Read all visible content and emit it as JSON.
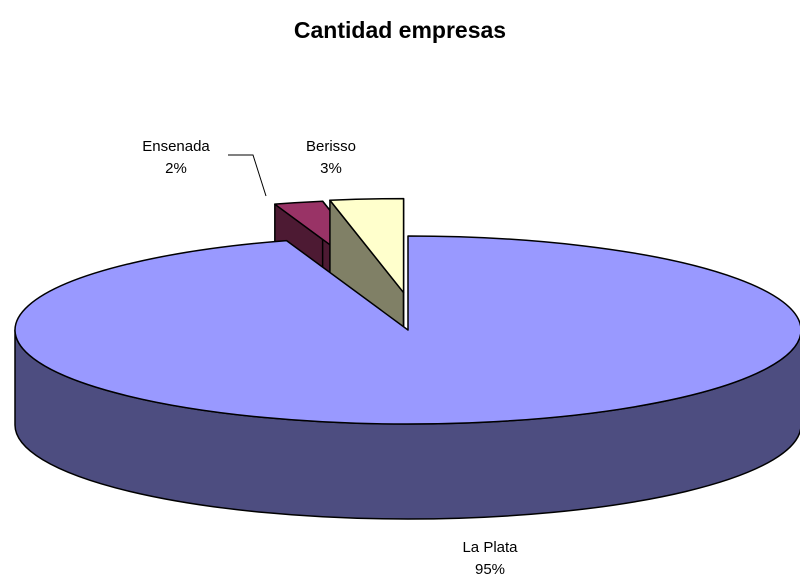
{
  "chart_data": {
    "type": "pie",
    "title": "Cantidad empresas",
    "categories": [
      "La Plata",
      "Ensenada",
      "Berisso"
    ],
    "values": [
      95,
      2,
      3
    ],
    "value_labels": [
      "95%",
      "2%",
      "3%"
    ],
    "colors": [
      "#9999ff",
      "#993366",
      "#ffffcc"
    ]
  }
}
